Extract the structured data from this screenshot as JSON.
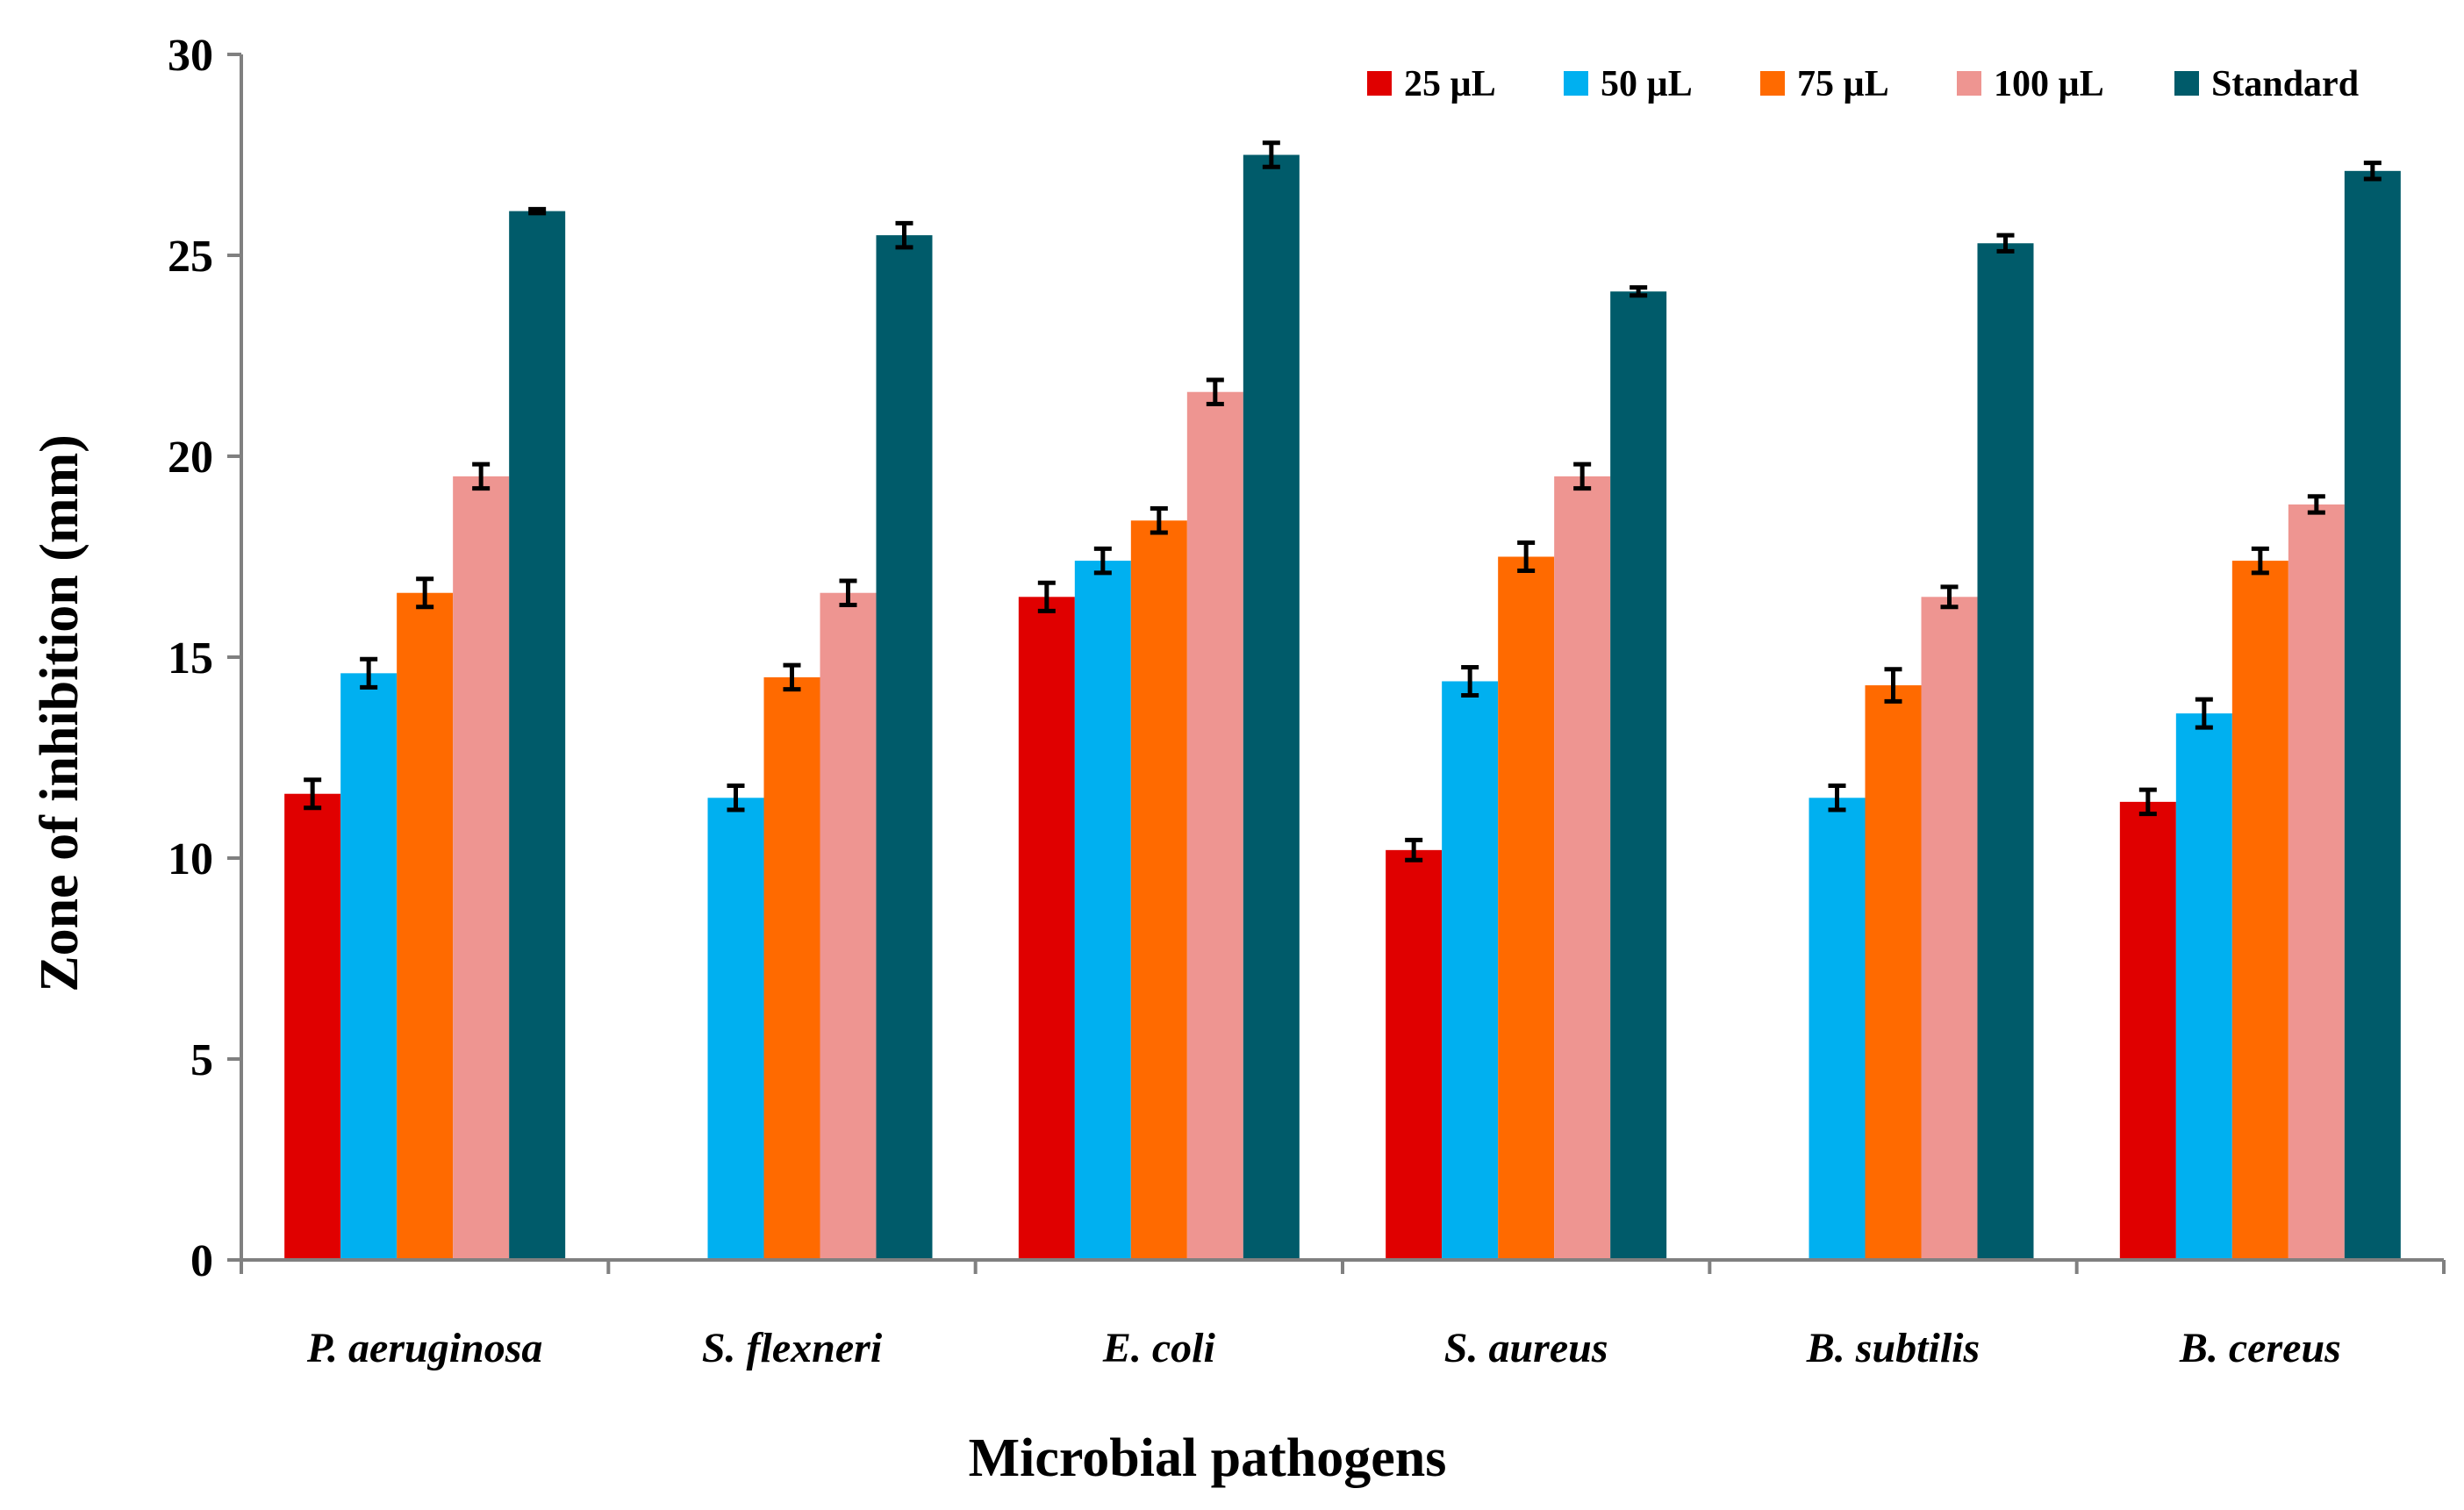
{
  "chart_data": {
    "type": "bar",
    "title": "",
    "xlabel": "Microbial pathogens",
    "ylabel": "Zone of inhibition (mm)",
    "ylim": [
      0,
      30
    ],
    "yticks": [
      0,
      5,
      10,
      15,
      20,
      25,
      30
    ],
    "ytick_labels": [
      "0",
      "5",
      "10",
      "15",
      "20",
      "25",
      "30"
    ],
    "grid": false,
    "legend_position": "top-right",
    "categories": [
      "P. aeruginosa",
      "S. flexneri",
      "E. coli",
      "S. aureus",
      "B. subtilis",
      "B. cereus"
    ],
    "series": [
      {
        "name": "25 µL",
        "color": "#e00000",
        "values": [
          11.6,
          null,
          16.5,
          10.2,
          null,
          11.4
        ],
        "errors": [
          0.35,
          null,
          0.35,
          0.25,
          null,
          0.3
        ]
      },
      {
        "name": "50 µL",
        "color": "#00b0f0",
        "values": [
          14.6,
          11.5,
          17.4,
          14.4,
          11.5,
          13.6
        ],
        "errors": [
          0.35,
          0.3,
          0.3,
          0.35,
          0.3,
          0.35
        ]
      },
      {
        "name": "75 µL",
        "color": "#ff6a00",
        "values": [
          16.6,
          14.5,
          18.4,
          17.5,
          14.3,
          17.4
        ],
        "errors": [
          0.35,
          0.3,
          0.3,
          0.35,
          0.4,
          0.3
        ]
      },
      {
        "name": "100 µL",
        "color": "#ee9591",
        "values": [
          19.5,
          16.6,
          21.6,
          19.5,
          16.5,
          18.8
        ],
        "errors": [
          0.3,
          0.3,
          0.3,
          0.3,
          0.25,
          0.2
        ]
      },
      {
        "name": "Standard",
        "color": "#005b6a",
        "values": [
          26.1,
          25.5,
          27.5,
          24.1,
          25.3,
          27.1
        ],
        "errors": [
          0.05,
          0.3,
          0.3,
          0.1,
          0.2,
          0.2
        ]
      }
    ]
  }
}
